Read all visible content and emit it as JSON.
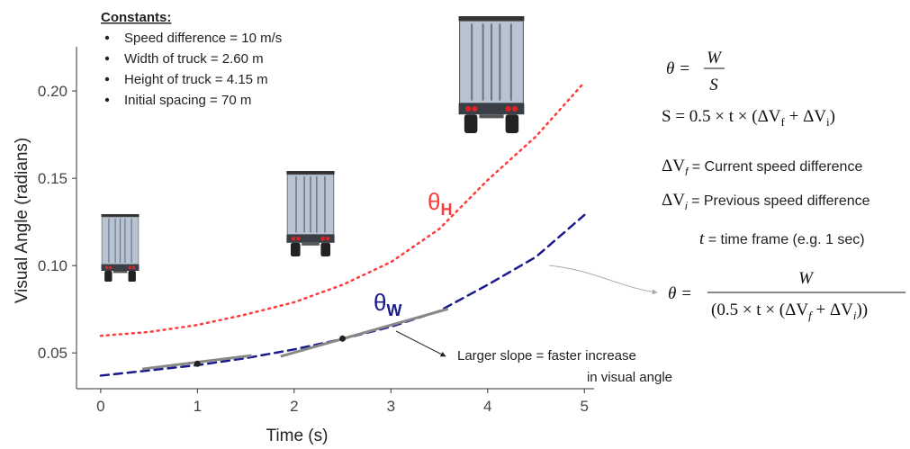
{
  "chart_data": {
    "type": "line",
    "x_label": "Time (s)",
    "y_label": "Visual Angle (radians)",
    "x": [
      0,
      0.5,
      1,
      1.5,
      2,
      2.5,
      3,
      3.5,
      4,
      4.5,
      5
    ],
    "series": [
      {
        "name": "θ",
        "subscript": "H",
        "color": "#ff3b3b",
        "dash": "dotted",
        "values": [
          0.0598,
          0.062,
          0.066,
          0.072,
          0.079,
          0.089,
          0.102,
          0.121,
          0.149,
          0.174,
          0.205
        ]
      },
      {
        "name": "θ",
        "subscript": "W",
        "color": "#1a1a8c",
        "dash": "dashed",
        "values": [
          0.037,
          0.04,
          0.043,
          0.047,
          0.052,
          0.058,
          0.065,
          0.074,
          0.089,
          0.105,
          0.129
        ]
      }
    ],
    "tangents": [
      {
        "x": [
          0.43,
          1.56
        ],
        "y": [
          0.0408,
          0.0485
        ]
      },
      {
        "x": [
          1.86,
          3.59
        ],
        "y": [
          0.048,
          0.0752
        ]
      }
    ],
    "points": {
      "x": [
        1,
        2.5
      ],
      "y": [
        0.0438,
        0.0582
      ]
    },
    "xlim": [
      -0.25,
      5.1
    ],
    "xticks": [
      0,
      1,
      2,
      3,
      4,
      5
    ],
    "ylim": [
      0.0295,
      0.215
    ],
    "yticks": [
      0.05,
      {
        "value": 0.1,
        "label": "0.10"
      },
      0.15,
      {
        "value": 0.2,
        "label": "0.20"
      }
    ],
    "constants": {
      "title": "Constants:",
      "items": [
        "Speed difference = 10 m/s",
        "Width of truck = 2.60 m",
        "Height of truck = 4.15 m",
        "Initial spacing = 70 m"
      ]
    },
    "annotation": [
      "Larger slope = faster increase",
      "in visual angle"
    ],
    "formulas": {
      "f1": {
        "lhs": "θ =",
        "num": "W",
        "den": "S"
      },
      "f2": "S = 0.5 × t × (ΔV",
      "f2_sub1": "f",
      "f2_mid": " + ΔV",
      "f2_sub2": "i",
      "f2_end": ")",
      "f3": {
        "lhs": "ΔV",
        "sub": "f",
        "rhs": " = Current speed difference"
      },
      "f4": {
        "lhs": "ΔV",
        "sub": "i",
        "rhs": " = Previous speed difference"
      },
      "f5": {
        "lhs": "t",
        "rhs": " = time frame (e.g. 1 sec)"
      },
      "f6": {
        "lhs": "θ =",
        "num": "W",
        "den": "(0.5 × t × (ΔV",
        "den_sub1": "f",
        "den_mid": " + ΔV",
        "den_sub2": "i",
        "den_end": "))"
      }
    }
  }
}
